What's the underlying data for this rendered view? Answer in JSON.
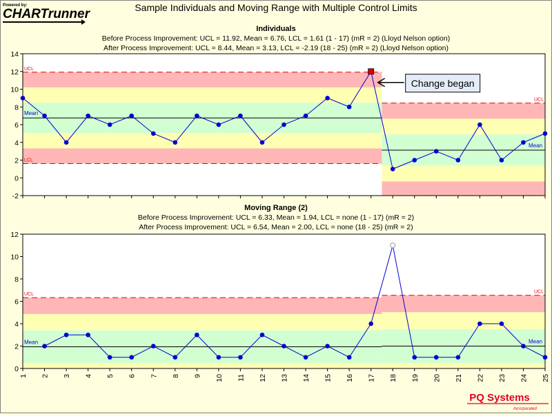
{
  "header": {
    "powered_by": "Powered by:",
    "brand": "CHARTrunner",
    "title": "Sample Individuals and Moving Range with Multiple Control Limits"
  },
  "footer": {
    "company": "PQ Systems",
    "company_sub": "Incorporated"
  },
  "colors": {
    "red_zone": "#ffb6b6",
    "yellow_zone": "#ffffb4",
    "green_zone": "#d2ffd2",
    "limit_line": "#e00000",
    "series": "#0000d0",
    "mean_line": "#000000"
  },
  "chart_data": [
    {
      "id": "individuals",
      "type": "line",
      "title": "Individuals",
      "subtitles": [
        "Before Process Improvement: UCL = 11.92, Mean = 6.76, LCL = 1.61 (1 - 17) (mR = 2) (Lloyd Nelson option)",
        "After Process Improvement: UCL = 8.44, Mean = 3.13, LCL = -2.19 (18 - 25) (mR = 2) (Lloyd Nelson option)"
      ],
      "x": [
        1,
        2,
        3,
        4,
        5,
        6,
        7,
        8,
        9,
        10,
        11,
        12,
        13,
        14,
        15,
        16,
        17,
        18,
        19,
        20,
        21,
        22,
        23,
        24,
        25
      ],
      "values": [
        9,
        7,
        4,
        7,
        6,
        7,
        5,
        4,
        7,
        6,
        7,
        4,
        6,
        7,
        9,
        8,
        12,
        1,
        2,
        3,
        2,
        6,
        2,
        4,
        5
      ],
      "ylim": [
        -2,
        14
      ],
      "yticks": [
        -2,
        0,
        2,
        4,
        6,
        8,
        10,
        12,
        14
      ],
      "segments": [
        {
          "name": "Before Process Improvement",
          "start": 1,
          "end": 17,
          "ucl": 11.92,
          "mean": 6.76,
          "lcl": 1.61
        },
        {
          "name": "After Process Improvement",
          "start": 18,
          "end": 25,
          "ucl": 8.44,
          "mean": 3.13,
          "lcl": -2.19
        }
      ],
      "line_labels": {
        "ucl": "UCL",
        "lcl": "LCL",
        "mean": "Mean"
      },
      "highlight_point": 17,
      "annotation": {
        "text": "Change began",
        "point": 17
      },
      "grid": false
    },
    {
      "id": "moving-range",
      "type": "line",
      "title": "Moving Range (2)",
      "subtitles": [
        "Before Process Improvement: UCL = 6.33, Mean = 1.94, LCL = none (1 - 17) (mR = 2)",
        "After Process Improvement: UCL = 6.54, Mean = 2.00, LCL = none (18 - 25) (mR = 2)"
      ],
      "x": [
        1,
        2,
        3,
        4,
        5,
        6,
        7,
        8,
        9,
        10,
        11,
        12,
        13,
        14,
        15,
        16,
        17,
        18,
        19,
        20,
        21,
        22,
        23,
        24,
        25
      ],
      "values": [
        null,
        2,
        3,
        3,
        1,
        1,
        2,
        1,
        3,
        1,
        1,
        3,
        2,
        1,
        2,
        1,
        4,
        11,
        1,
        1,
        1,
        4,
        4,
        2,
        1
      ],
      "ylim": [
        0,
        12
      ],
      "yticks": [
        0,
        2,
        4,
        6,
        8,
        10,
        12
      ],
      "segments": [
        {
          "name": "Before Process Improvement",
          "start": 1,
          "end": 17,
          "ucl": 6.33,
          "mean": 1.94,
          "lcl": null
        },
        {
          "name": "After Process Improvement",
          "start": 18,
          "end": 25,
          "ucl": 6.54,
          "mean": 2.0,
          "lcl": null
        }
      ],
      "line_labels": {
        "ucl": "UCL",
        "mean": "Mean"
      },
      "open_point": 18,
      "grid": false
    }
  ]
}
